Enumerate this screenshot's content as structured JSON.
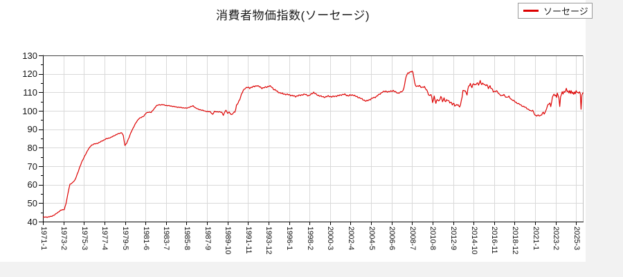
{
  "header": {
    "title": "消費者物価指数(ソーセージ)"
  },
  "legend": {
    "label": "ソーセージ",
    "line_color": "#dd0000"
  },
  "colors": {
    "background": "#f2f2f2",
    "plot_background": "#ffffff",
    "grid": "#d9d9d9",
    "axis": "#000000",
    "frame_right": "#c0c0c0",
    "line": "#dd0000",
    "text": "#111111"
  },
  "chart_data": {
    "type": "line",
    "title": "消費者物価指数(ソーセージ)",
    "series_name": "ソーセージ",
    "line_color": "#dd0000",
    "grid": true,
    "legend_position": "top-right",
    "ylim": [
      40,
      130
    ],
    "y_ticks": [
      40,
      50,
      60,
      70,
      80,
      90,
      100,
      110,
      120,
      130
    ],
    "y_minor_step": 5,
    "x_tick_labels": [
      "1971-1",
      "1973-2",
      "1975-3",
      "1977-4",
      "1979-5",
      "1981-6",
      "1983-7",
      "1985-8",
      "1987-9",
      "1989-10",
      "1991-11",
      "1993-12",
      "1996-1",
      "1998-2",
      "2000-3",
      "2002-4",
      "2004-5",
      "2006-6",
      "2008-7",
      "2010-8",
      "2012-9",
      "2014-10",
      "2016-11",
      "2018-12",
      "2021-1",
      "2023-2",
      "2025-3"
    ],
    "x_tick_interval_points": 25,
    "n_points": 660,
    "x_start_label": "1971-1",
    "waypoints": [
      [
        0,
        42.4
      ],
      [
        6,
        42.5
      ],
      [
        10,
        42.8
      ],
      [
        14,
        43.6
      ],
      [
        18,
        44.9
      ],
      [
        22,
        46.2
      ],
      [
        26,
        46.6
      ],
      [
        28,
        49.5
      ],
      [
        30,
        54.0
      ],
      [
        32,
        58.5
      ],
      [
        33,
        60.2
      ],
      [
        36,
        61.0
      ],
      [
        39,
        62.5
      ],
      [
        43,
        67.0
      ],
      [
        47,
        72.0
      ],
      [
        51,
        75.5
      ],
      [
        55,
        79.0
      ],
      [
        59,
        81.3
      ],
      [
        62,
        82.0
      ],
      [
        66,
        82.3
      ],
      [
        71,
        83.4
      ],
      [
        77,
        84.8
      ],
      [
        83,
        85.6
      ],
      [
        88,
        86.8
      ],
      [
        92,
        87.6
      ],
      [
        96,
        88.2
      ],
      [
        98,
        86.5
      ],
      [
        100,
        81.2
      ],
      [
        102,
        82.5
      ],
      [
        105,
        85.5
      ],
      [
        108,
        89.0
      ],
      [
        111,
        91.5
      ],
      [
        114,
        94.0
      ],
      [
        117,
        95.8
      ],
      [
        120,
        96.4
      ],
      [
        123,
        97.2
      ],
      [
        126,
        98.8
      ],
      [
        129,
        99.3
      ],
      [
        132,
        99.1
      ],
      [
        135,
        100.8
      ],
      [
        138,
        102.6
      ],
      [
        141,
        103.2
      ],
      [
        146,
        103.3
      ],
      [
        150,
        102.9
      ],
      [
        156,
        102.6
      ],
      [
        162,
        102.1
      ],
      [
        168,
        101.8
      ],
      [
        175,
        101.4
      ],
      [
        180,
        102.2
      ],
      [
        183,
        102.7
      ],
      [
        186,
        101.6
      ],
      [
        189,
        100.9
      ],
      [
        195,
        100.2
      ],
      [
        200,
        99.6
      ],
      [
        204,
        99.5
      ],
      [
        207,
        98.0
      ],
      [
        209,
        99.6
      ],
      [
        214,
        99.4
      ],
      [
        218,
        99.2
      ],
      [
        220,
        97.7
      ],
      [
        223,
        100.4
      ],
      [
        225,
        98.7
      ],
      [
        227,
        99.3
      ],
      [
        230,
        97.6
      ],
      [
        232,
        99.0
      ],
      [
        234,
        99.4
      ],
      [
        235,
        100.8
      ],
      [
        236,
        102.8
      ],
      [
        238,
        104.4
      ],
      [
        240,
        106.3
      ],
      [
        242,
        108.8
      ],
      [
        244,
        110.8
      ],
      [
        246,
        112.1
      ],
      [
        249,
        112.7
      ],
      [
        252,
        112.3
      ],
      [
        255,
        112.9
      ],
      [
        258,
        113.2
      ],
      [
        261,
        113.7
      ],
      [
        264,
        113.0
      ],
      [
        267,
        112.3
      ],
      [
        270,
        112.6
      ],
      [
        273,
        112.9
      ],
      [
        276,
        113.5
      ],
      [
        279,
        112.8
      ],
      [
        281,
        111.8
      ],
      [
        284,
        111.0
      ],
      [
        287,
        110.1
      ],
      [
        291,
        109.4
      ],
      [
        296,
        108.9
      ],
      [
        300,
        108.7
      ],
      [
        304,
        108.2
      ],
      [
        308,
        107.8
      ],
      [
        312,
        108.3
      ],
      [
        316,
        108.7
      ],
      [
        320,
        108.9
      ],
      [
        324,
        108.1
      ],
      [
        328,
        109.3
      ],
      [
        330,
        110.0
      ],
      [
        333,
        108.9
      ],
      [
        336,
        108.3
      ],
      [
        340,
        107.7
      ],
      [
        344,
        107.4
      ],
      [
        348,
        108.0
      ],
      [
        352,
        107.6
      ],
      [
        356,
        107.9
      ],
      [
        360,
        108.2
      ],
      [
        364,
        108.7
      ],
      [
        368,
        108.9
      ],
      [
        372,
        108.1
      ],
      [
        375,
        108.5
      ],
      [
        378,
        108.6
      ],
      [
        381,
        107.9
      ],
      [
        384,
        107.4
      ],
      [
        387,
        106.8
      ],
      [
        390,
        106.1
      ],
      [
        394,
        105.2
      ],
      [
        398,
        106.0
      ],
      [
        402,
        106.9
      ],
      [
        406,
        107.6
      ],
      [
        410,
        108.9
      ],
      [
        414,
        110.2
      ],
      [
        418,
        110.6
      ],
      [
        421,
        110.2
      ],
      [
        424,
        110.6
      ],
      [
        427,
        110.9
      ],
      [
        430,
        110.1
      ],
      [
        433,
        109.6
      ],
      [
        436,
        110.0
      ],
      [
        439,
        110.9
      ],
      [
        441,
        114.5
      ],
      [
        443,
        119.0
      ],
      [
        445,
        120.4
      ],
      [
        447,
        120.9
      ],
      [
        449,
        121.2
      ],
      [
        450,
        121.3
      ],
      [
        451,
        120.7
      ],
      [
        452,
        118.6
      ],
      [
        453,
        115.6
      ],
      [
        454,
        113.9
      ],
      [
        456,
        113.1
      ],
      [
        459,
        113.6
      ],
      [
        462,
        112.6
      ],
      [
        465,
        112.9
      ],
      [
        467,
        111.8
      ],
      [
        469,
        110.2
      ],
      [
        471,
        107.6
      ],
      [
        473,
        109.3
      ],
      [
        475,
        104.8
      ],
      [
        477,
        107.3
      ],
      [
        479,
        104.2
      ],
      [
        481,
        106.6
      ],
      [
        483,
        104.9
      ],
      [
        485,
        107.7
      ],
      [
        487,
        105.4
      ],
      [
        489,
        106.7
      ],
      [
        491,
        104.7
      ],
      [
        493,
        106.1
      ],
      [
        495,
        105.2
      ],
      [
        497,
        104.4
      ],
      [
        499,
        103.5
      ],
      [
        501,
        103.9
      ],
      [
        503,
        102.7
      ],
      [
        505,
        103.3
      ],
      [
        507,
        102.4
      ],
      [
        509,
        103.1
      ],
      [
        510,
        105.5
      ],
      [
        511,
        107.8
      ],
      [
        512,
        110.4
      ],
      [
        514,
        111.2
      ],
      [
        516,
        109.9
      ],
      [
        517,
        109.0
      ],
      [
        519,
        113.3
      ],
      [
        521,
        114.4
      ],
      [
        523,
        113.1
      ],
      [
        525,
        114.7
      ],
      [
        527,
        113.6
      ],
      [
        529,
        115.4
      ],
      [
        531,
        114.2
      ],
      [
        533,
        115.7
      ],
      [
        535,
        114.4
      ],
      [
        537,
        115.1
      ],
      [
        539,
        113.4
      ],
      [
        541,
        114.1
      ],
      [
        543,
        112.7
      ],
      [
        545,
        113.2
      ],
      [
        547,
        111.7
      ],
      [
        550,
        110.4
      ],
      [
        553,
        110.7
      ],
      [
        556,
        109.2
      ],
      [
        559,
        108.1
      ],
      [
        562,
        108.7
      ],
      [
        565,
        107.2
      ],
      [
        568,
        107.7
      ],
      [
        571,
        106.2
      ],
      [
        575,
        105.1
      ],
      [
        578,
        104.2
      ],
      [
        581,
        103.5
      ],
      [
        584,
        102.7
      ],
      [
        587,
        102.1
      ],
      [
        590,
        101.3
      ],
      [
        593,
        100.5
      ],
      [
        595,
        99.7
      ],
      [
        597,
        100.3
      ],
      [
        599,
        98.5
      ],
      [
        600,
        97.5
      ],
      [
        602,
        97.2
      ],
      [
        604,
        97.7
      ],
      [
        606,
        97.3
      ],
      [
        608,
        97.9
      ],
      [
        610,
        99.2
      ],
      [
        611,
        98.5
      ],
      [
        612,
        98.9
      ],
      [
        614,
        101.4
      ],
      [
        616,
        103.5
      ],
      [
        618,
        104.1
      ],
      [
        619,
        102.4
      ],
      [
        620,
        104.7
      ],
      [
        621,
        107.1
      ],
      [
        622,
        108.3
      ],
      [
        623,
        109.1
      ],
      [
        624,
        107.9
      ],
      [
        625,
        108.7
      ],
      [
        626,
        107.5
      ],
      [
        627,
        109.4
      ],
      [
        628,
        108.3
      ],
      [
        629,
        106.9
      ],
      [
        630,
        102.0
      ],
      [
        631,
        107.7
      ],
      [
        632,
        108.9
      ],
      [
        633,
        110.2
      ],
      [
        634,
        109.3
      ],
      [
        635,
        110.5
      ],
      [
        636,
        109.7
      ],
      [
        637,
        110.8
      ],
      [
        638,
        112.2
      ],
      [
        639,
        110.3
      ],
      [
        640,
        111.1
      ],
      [
        641,
        109.7
      ],
      [
        642,
        110.7
      ],
      [
        643,
        109.5
      ],
      [
        644,
        110.8
      ],
      [
        645,
        109.2
      ],
      [
        646,
        110.4
      ],
      [
        647,
        108.9
      ],
      [
        648,
        110.1
      ],
      [
        649,
        109.4
      ],
      [
        650,
        110.7
      ],
      [
        651,
        109.8
      ],
      [
        652,
        110.2
      ],
      [
        653,
        109.5
      ],
      [
        654,
        110.3
      ],
      [
        655,
        109.6
      ],
      [
        656,
        100.6
      ],
      [
        657,
        108.4
      ],
      [
        658,
        109.8
      ],
      [
        659,
        109.6
      ]
    ]
  }
}
